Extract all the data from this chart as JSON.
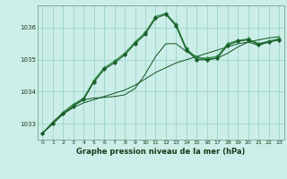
{
  "background_color": "#cceee8",
  "grid_color": "#99d4cc",
  "line_color_dark": "#1a5c2a",
  "line_color_med": "#2d8b45",
  "title": "Graphe pression niveau de la mer (hPa)",
  "xlim": [
    -0.5,
    23.5
  ],
  "ylim": [
    1032.5,
    1036.7
  ],
  "yticks": [
    1033,
    1034,
    1035,
    1036
  ],
  "xticks": [
    0,
    1,
    2,
    3,
    4,
    5,
    6,
    7,
    8,
    9,
    10,
    11,
    12,
    13,
    14,
    15,
    16,
    17,
    18,
    19,
    20,
    21,
    22,
    23
  ],
  "s1_x": [
    0,
    1,
    2,
    3,
    4,
    5,
    6,
    7,
    8,
    9,
    10,
    11,
    12,
    13,
    14,
    15,
    16,
    17,
    18,
    19,
    20,
    21,
    22,
    23
  ],
  "s1_y": [
    1032.7,
    1033.0,
    1033.3,
    1033.5,
    1033.65,
    1033.75,
    1033.85,
    1033.95,
    1034.05,
    1034.2,
    1034.4,
    1034.6,
    1034.75,
    1034.9,
    1035.0,
    1035.1,
    1035.2,
    1035.3,
    1035.4,
    1035.5,
    1035.55,
    1035.62,
    1035.68,
    1035.72
  ],
  "s2_x": [
    0,
    1,
    2,
    3,
    4,
    5,
    6,
    7,
    8,
    9,
    10,
    11,
    12,
    13,
    14,
    15,
    16,
    17,
    18,
    19,
    20,
    21,
    22,
    23
  ],
  "s2_y": [
    1032.7,
    1033.05,
    1033.35,
    1033.6,
    1033.75,
    1033.8,
    1033.82,
    1033.85,
    1033.9,
    1034.1,
    1034.55,
    1035.1,
    1035.5,
    1035.5,
    1035.25,
    1035.1,
    1035.0,
    1035.05,
    1035.2,
    1035.4,
    1035.55,
    1035.45,
    1035.55,
    1035.65
  ],
  "s3_x": [
    0,
    1,
    2,
    3,
    4,
    5,
    6,
    7,
    8,
    9,
    10,
    11,
    12,
    13,
    14,
    15,
    16,
    17,
    18,
    19,
    20,
    21,
    22,
    23
  ],
  "s3_y": [
    1032.7,
    1033.0,
    1033.35,
    1033.6,
    1033.8,
    1034.35,
    1034.75,
    1034.95,
    1035.2,
    1035.55,
    1035.85,
    1036.35,
    1036.45,
    1036.1,
    1035.35,
    1035.05,
    1035.05,
    1035.1,
    1035.5,
    1035.6,
    1035.65,
    1035.5,
    1035.58,
    1035.65
  ],
  "s4_x": [
    0,
    1,
    2,
    3,
    4,
    5,
    6,
    7,
    8,
    9,
    10,
    11,
    12,
    13,
    14,
    15,
    16,
    17,
    18,
    19,
    20,
    21,
    22,
    23
  ],
  "s4_y": [
    1032.7,
    1033.0,
    1033.3,
    1033.55,
    1033.75,
    1034.3,
    1034.7,
    1034.9,
    1035.15,
    1035.5,
    1035.8,
    1036.3,
    1036.42,
    1036.05,
    1035.3,
    1035.0,
    1035.0,
    1035.05,
    1035.45,
    1035.58,
    1035.62,
    1035.48,
    1035.55,
    1035.62
  ]
}
